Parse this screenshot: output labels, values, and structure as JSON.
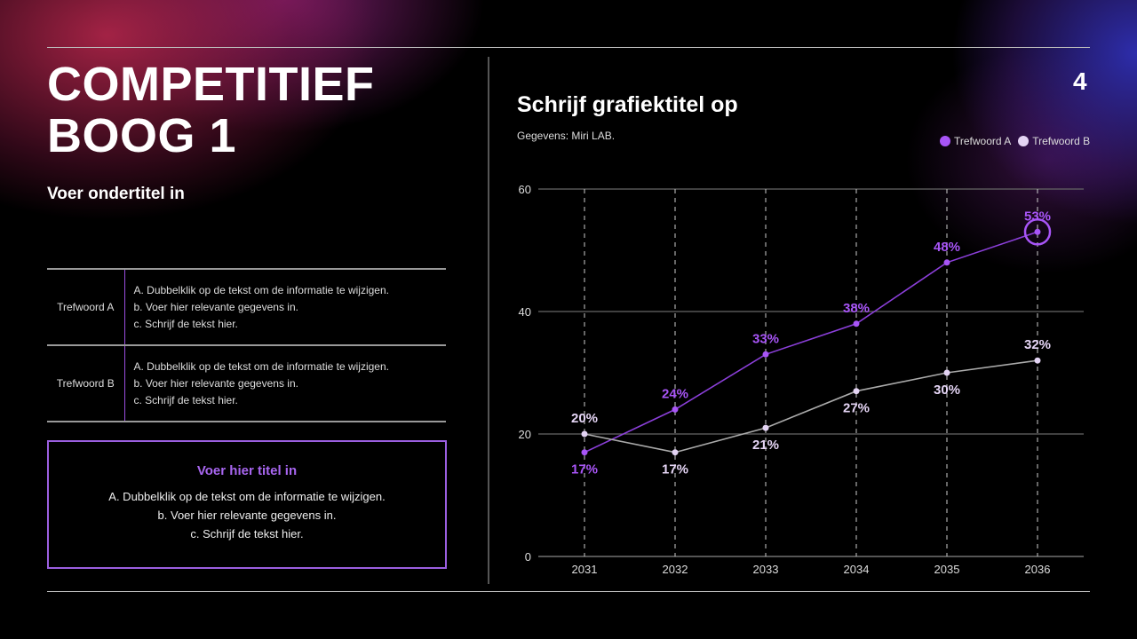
{
  "slide": {
    "title_lines": [
      "COMPETITIEF",
      "BOOG 1"
    ],
    "subtitle": "Voer ondertitel in",
    "page_number": "4"
  },
  "table": [
    {
      "key": "Trefwoord A",
      "lines": [
        "A. Dubbelklik op de tekst om de informatie te wijzigen.",
        "b. Voer hier relevante gegevens in.",
        "c. Schrijf de tekst hier."
      ]
    },
    {
      "key": "Trefwoord B",
      "lines": [
        "A. Dubbelklik op de tekst om de informatie te wijzigen.",
        "b. Voer hier relevante gegevens in.",
        "c. Schrijf de tekst hier."
      ]
    }
  ],
  "box": {
    "title": "Voer hier titel in",
    "lines": [
      "A. Dubbelklik op de tekst om de informatie te wijzigen.",
      "b. Voer hier relevante gegevens in.",
      "c. Schrijf de tekst hier."
    ]
  },
  "chart_data": {
    "type": "line",
    "title": "Schrijf grafiektitel op",
    "source": "Gegevens: Miri LAB.",
    "categories": [
      "2031",
      "2032",
      "2033",
      "2034",
      "2035",
      "2036"
    ],
    "yticks": [
      "0",
      "20",
      "40",
      "60"
    ],
    "ylim": [
      0,
      60
    ],
    "grid": true,
    "legend_position": "top-right",
    "series": [
      {
        "name": "Trefwoord A",
        "color": "#a855f7",
        "values": [
          17,
          24,
          33,
          38,
          48,
          53
        ],
        "labels": [
          "17%",
          "24%",
          "33%",
          "38%",
          "48%",
          "53%"
        ]
      },
      {
        "name": "Trefwoord B",
        "color": "#e4d4f4",
        "values": [
          20,
          17,
          21,
          27,
          30,
          32
        ],
        "labels": [
          "20%",
          "17%",
          "21%",
          "27%",
          "30%",
          "32%"
        ]
      }
    ]
  }
}
